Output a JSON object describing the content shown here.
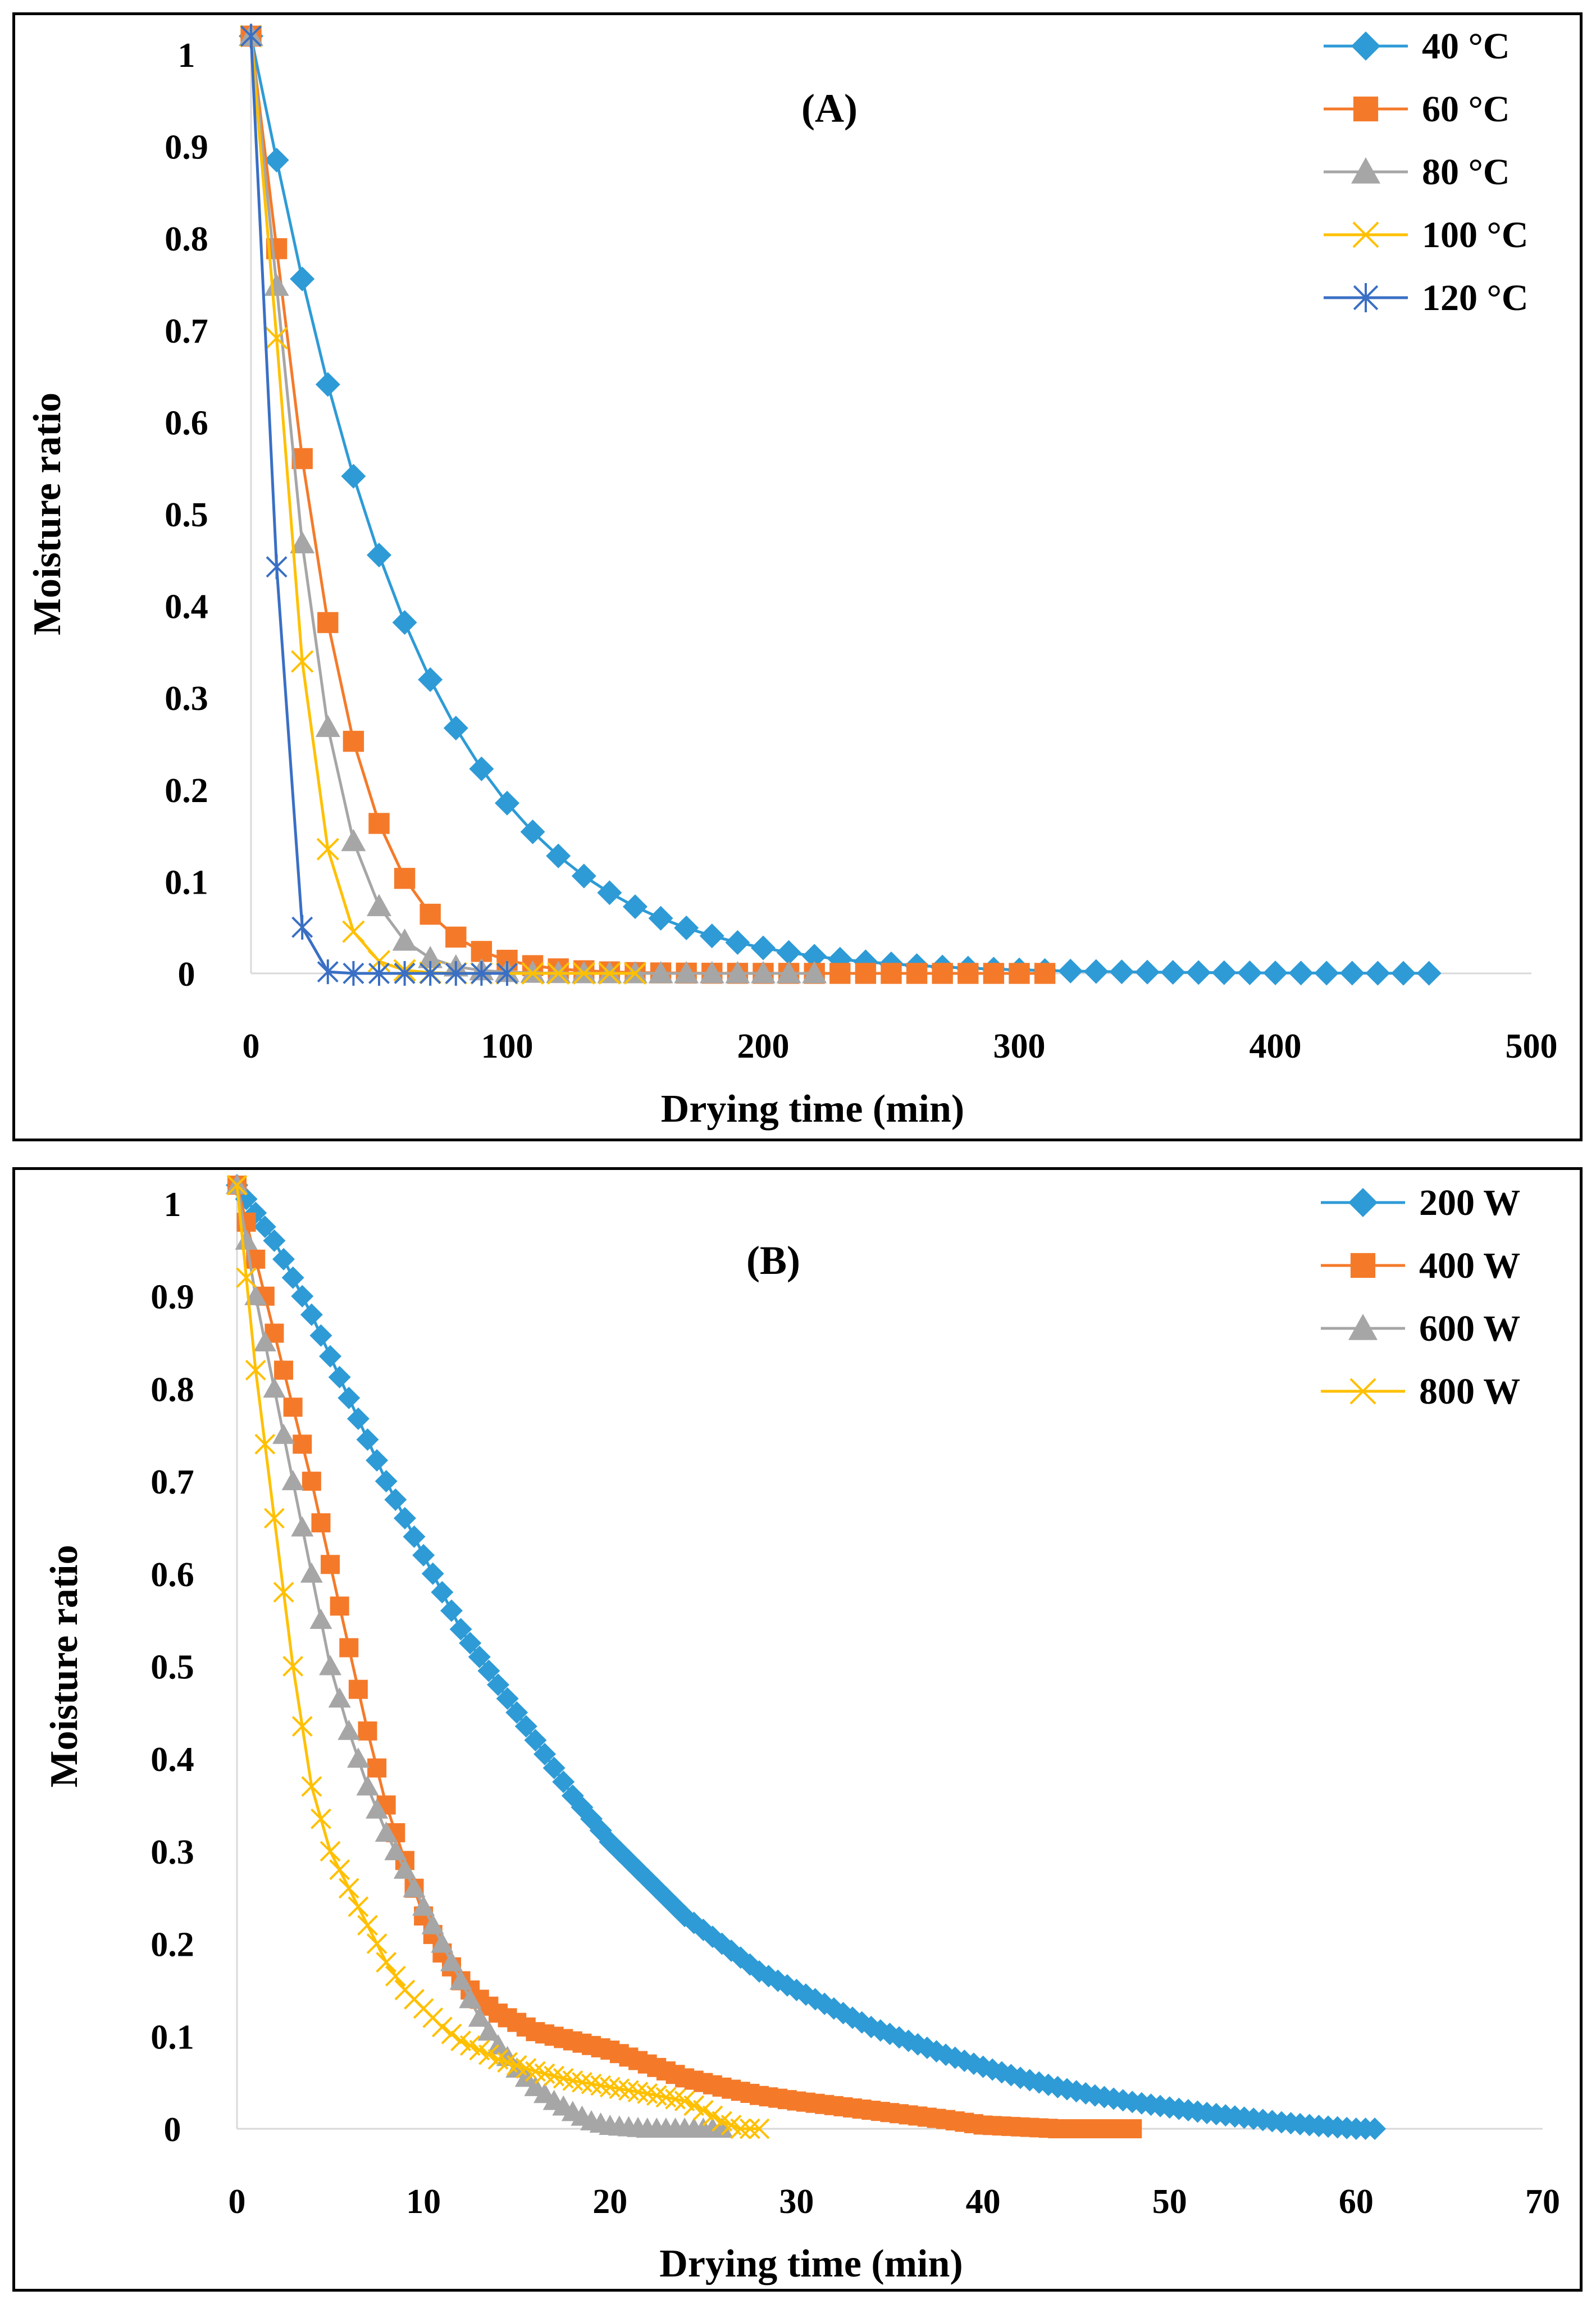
{
  "colors": {
    "blue": "#2e9bd6",
    "orange": "#f47a2a",
    "gray": "#a6a6a6",
    "yellow": "#ffc000",
    "navy": "#3a6fc4",
    "axis": "#d9d9d9"
  },
  "chart_data": [
    {
      "type": "line",
      "title": "(A)",
      "xlabel": "Drying time (min)",
      "ylabel": "Moisture ratio",
      "xlim": [
        0,
        500
      ],
      "ylim": [
        0,
        1
      ],
      "xticks": [
        "0",
        "100",
        "200",
        "300",
        "400",
        "500"
      ],
      "yticks": [
        "0",
        "0.1",
        "0.2",
        "0.3",
        "0.4",
        "0.5",
        "0.6",
        "0.7",
        "0.8",
        "0.9",
        "1"
      ],
      "legend_position": "top-right",
      "series": [
        {
          "name": "40 °C",
          "marker": "diamond",
          "color": "#2e9bd6",
          "k": 0.0118,
          "n": 1.08,
          "xmax": 460,
          "step": 10
        },
        {
          "name": "60 °C",
          "marker": "square",
          "color": "#f47a2a",
          "k": 0.0155,
          "n": 1.22,
          "xmax": 315,
          "step": 10
        },
        {
          "name": "80 °C",
          "marker": "triangle",
          "color": "#a6a6a6",
          "k": 0.0145,
          "n": 1.33,
          "xmax": 225,
          "step": 10
        },
        {
          "name": "100 °C",
          "marker": "x",
          "color": "#ffc000",
          "k": 0.0123,
          "n": 1.5,
          "xmax": 150,
          "step": 10
        },
        {
          "name": "120 °C",
          "marker": "asterisk",
          "color": "#3a6fc4",
          "k": 0.0118,
          "n": 1.85,
          "xmax": 100,
          "step": 10
        }
      ]
    },
    {
      "type": "line",
      "title": "(B)",
      "xlabel": "Drying time (min)",
      "ylabel": "Moisture ratio",
      "xlim": [
        0,
        70
      ],
      "ylim": [
        0,
        1
      ],
      "xticks": [
        "0",
        "10",
        "20",
        "30",
        "40",
        "50",
        "60",
        "70"
      ],
      "yticks": [
        "0",
        "0.1",
        "0.2",
        "0.3",
        "0.4",
        "0.5",
        "0.6",
        "0.7",
        "0.8",
        "0.9",
        "1"
      ],
      "legend_position": "top-right",
      "series": [
        {
          "name": "200 W",
          "marker": "diamond",
          "color": "#2e9bd6",
          "points": [
            [
              0,
              1.02
            ],
            [
              2,
              0.96
            ],
            [
              4,
              0.88
            ],
            [
              6,
              0.79
            ],
            [
              8,
              0.7
            ],
            [
              10,
              0.62
            ],
            [
              12,
              0.54
            ],
            [
              14,
              0.48
            ],
            [
              16,
              0.42
            ],
            [
              18,
              0.36
            ],
            [
              20,
              0.31
            ],
            [
              22,
              0.27
            ],
            [
              24,
              0.23
            ],
            [
              26,
              0.2
            ],
            [
              28,
              0.17
            ],
            [
              30,
              0.15
            ],
            [
              32,
              0.13
            ],
            [
              34,
              0.11
            ],
            [
              36,
              0.095
            ],
            [
              38,
              0.08
            ],
            [
              40,
              0.067
            ],
            [
              42,
              0.055
            ],
            [
              44,
              0.045
            ],
            [
              46,
              0.036
            ],
            [
              48,
              0.029
            ],
            [
              50,
              0.023
            ],
            [
              52,
              0.017
            ],
            [
              54,
              0.012
            ],
            [
              56,
              0.007
            ],
            [
              58,
              0.003
            ],
            [
              60,
              0.0
            ],
            [
              61,
              0.0
            ]
          ]
        },
        {
          "name": "400 W",
          "marker": "square",
          "color": "#f47a2a",
          "points": [
            [
              0,
              1.02
            ],
            [
              1,
              0.94
            ],
            [
              2,
              0.86
            ],
            [
              3,
              0.78
            ],
            [
              4,
              0.7
            ],
            [
              5,
              0.61
            ],
            [
              6,
              0.52
            ],
            [
              7,
              0.43
            ],
            [
              8,
              0.35
            ],
            [
              9,
              0.29
            ],
            [
              10,
              0.23
            ],
            [
              11,
              0.19
            ],
            [
              12,
              0.16
            ],
            [
              13,
              0.14
            ],
            [
              14,
              0.125
            ],
            [
              15,
              0.115
            ],
            [
              16,
              0.105
            ],
            [
              18,
              0.095
            ],
            [
              20,
              0.085
            ],
            [
              22,
              0.07
            ],
            [
              24,
              0.055
            ],
            [
              26,
              0.045
            ],
            [
              28,
              0.036
            ],
            [
              30,
              0.03
            ],
            [
              32,
              0.025
            ],
            [
              34,
              0.02
            ],
            [
              36,
              0.015
            ],
            [
              38,
              0.01
            ],
            [
              40,
              0.004
            ],
            [
              42,
              0.002
            ],
            [
              44,
              0.0
            ],
            [
              48,
              0.0
            ]
          ]
        },
        {
          "name": "600 W",
          "marker": "triangle",
          "color": "#a6a6a6",
          "points": [
            [
              0,
              1.02
            ],
            [
              1,
              0.9
            ],
            [
              2,
              0.8
            ],
            [
              3,
              0.7
            ],
            [
              4,
              0.6
            ],
            [
              5,
              0.5
            ],
            [
              6,
              0.43
            ],
            [
              7,
              0.37
            ],
            [
              8,
              0.32
            ],
            [
              9,
              0.28
            ],
            [
              10,
              0.24
            ],
            [
              11,
              0.2
            ],
            [
              12,
              0.16
            ],
            [
              13,
              0.12
            ],
            [
              14,
              0.09
            ],
            [
              15,
              0.065
            ],
            [
              16,
              0.045
            ],
            [
              17,
              0.03
            ],
            [
              18,
              0.018
            ],
            [
              19,
              0.008
            ],
            [
              20,
              0.003
            ],
            [
              22,
              0.0
            ],
            [
              24,
              0.0
            ],
            [
              26,
              0.0
            ]
          ]
        },
        {
          "name": "800 W",
          "marker": "x",
          "color": "#ffc000",
          "points": [
            [
              0,
              1.02
            ],
            [
              1,
              0.82
            ],
            [
              2,
              0.66
            ],
            [
              3,
              0.5
            ],
            [
              4,
              0.37
            ],
            [
              5,
              0.3
            ],
            [
              6,
              0.26
            ],
            [
              7,
              0.22
            ],
            [
              8,
              0.18
            ],
            [
              9,
              0.15
            ],
            [
              10,
              0.13
            ],
            [
              11,
              0.11
            ],
            [
              12,
              0.095
            ],
            [
              14,
              0.075
            ],
            [
              16,
              0.062
            ],
            [
              18,
              0.052
            ],
            [
              20,
              0.045
            ],
            [
              22,
              0.038
            ],
            [
              24,
              0.03
            ],
            [
              25,
              0.02
            ],
            [
              26,
              0.008
            ],
            [
              27,
              0.0
            ],
            [
              28,
              0.0
            ]
          ]
        }
      ]
    }
  ]
}
